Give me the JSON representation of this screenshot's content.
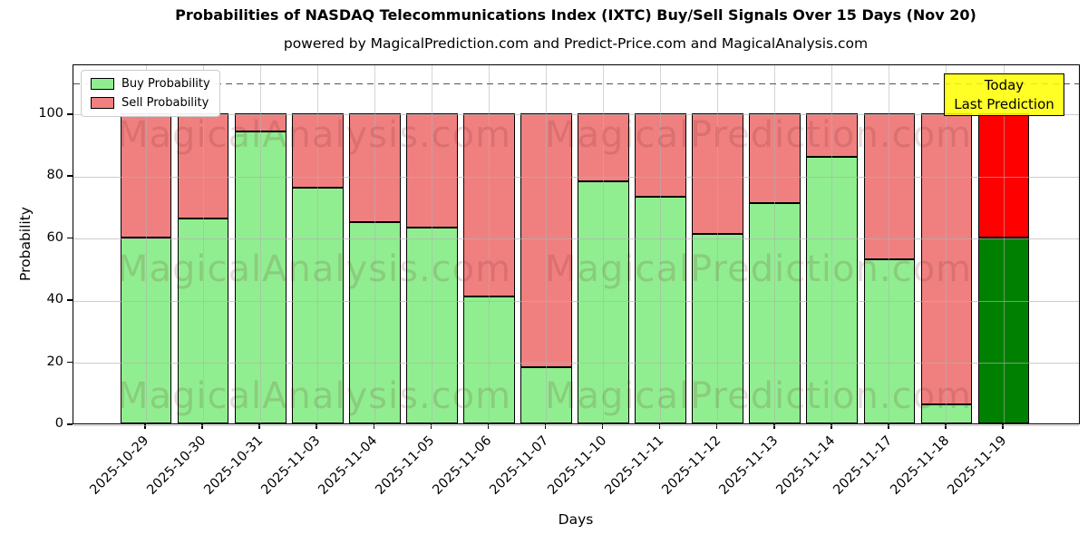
{
  "figure": {
    "title": "Probabilities of NASDAQ Telecommunications Index (IXTC) Buy/Sell Signals Over 15 Days (Nov 20)",
    "subtitle": "powered by MagicalPrediction.com and Predict-Price.com and MagicalAnalysis.com"
  },
  "axes": {
    "x_label": "Days",
    "y_label": "Probability",
    "y_ticks": [
      0,
      20,
      40,
      60,
      80,
      100
    ],
    "y_max": 116,
    "dashed_guide_y": 110
  },
  "legend": {
    "items": [
      {
        "label": "Buy Probability",
        "color": "#90ee90"
      },
      {
        "label": "Sell Probability",
        "color": "#f08080"
      }
    ]
  },
  "annotation": {
    "line1": "Today",
    "line2": "Last Prediction",
    "bg_color": "#ffff00"
  },
  "watermarks": {
    "left_text": "MagicalAnalysis.com",
    "right_text": "MagicalPrediction.com"
  },
  "colors": {
    "buy": "#90ee90",
    "sell": "#f08080",
    "today_buy": "#008000",
    "today_sell": "#ff0000",
    "bar_edge": "#000000",
    "grid": "#b0b0b0",
    "dashed_guide": "#555555"
  },
  "chart_data": {
    "type": "bar",
    "stacked": true,
    "title": "Probabilities of NASDAQ Telecommunications Index (IXTC) Buy/Sell Signals Over 15 Days (Nov 20)",
    "xlabel": "Days",
    "ylabel": "Probability",
    "ylim": [
      0,
      116
    ],
    "grid": true,
    "legend_position": "upper left",
    "categories": [
      "2025-10-29",
      "2025-10-30",
      "2025-10-31",
      "2025-11-03",
      "2025-11-04",
      "2025-11-05",
      "2025-11-06",
      "2025-11-07",
      "2025-11-10",
      "2025-11-11",
      "2025-11-12",
      "2025-11-13",
      "2025-11-14",
      "2025-11-17",
      "2025-11-18",
      "2025-11-19"
    ],
    "series": [
      {
        "name": "Buy Probability",
        "values": [
          60,
          66,
          94,
          76,
          65,
          63,
          41,
          18,
          78,
          73,
          61,
          71,
          86,
          53,
          6,
          60
        ]
      },
      {
        "name": "Sell Probability",
        "values": [
          40,
          34,
          6,
          24,
          35,
          37,
          59,
          82,
          22,
          27,
          39,
          29,
          14,
          47,
          94,
          40
        ]
      }
    ],
    "today_index": 15
  }
}
